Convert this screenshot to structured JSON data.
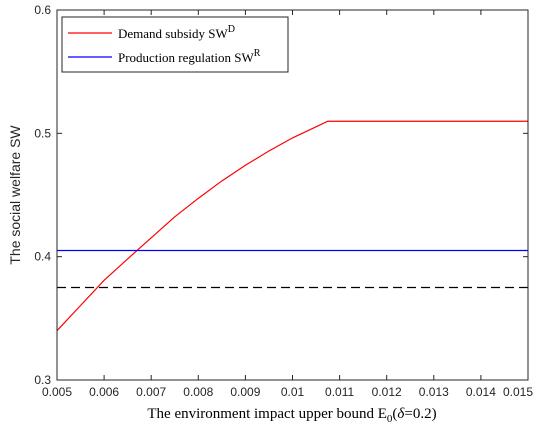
{
  "chart_data": {
    "type": "line",
    "xlabel": {
      "main": "The environment impact upper bound E",
      "sub": "0",
      "paren_open": "(",
      "delta": "δ",
      "paren_rest": "=0.2)"
    },
    "ylabel": "The social welfare SW",
    "xlim": [
      0.005,
      0.015
    ],
    "ylim": [
      0.3,
      0.6
    ],
    "xticks": [
      "0.005",
      "0.006",
      "0.007",
      "0.008",
      "0.009",
      "0.01",
      "0.011",
      "0.012",
      "0.013",
      "0.014",
      "0.015"
    ],
    "yticks": [
      "0.3",
      "0.4",
      "0.5",
      "0.6"
    ],
    "grid": false,
    "legend_position": "top-left",
    "series": [
      {
        "name_main": "Demand subsidy SW",
        "name_sup": "D",
        "color": "#ff0000",
        "style": "solid",
        "x": [
          0.005,
          0.0055,
          0.006,
          0.0065,
          0.007,
          0.0075,
          0.008,
          0.0085,
          0.009,
          0.0095,
          0.01,
          0.0105,
          0.01075,
          0.011,
          0.012,
          0.013,
          0.014,
          0.015
        ],
        "y": [
          0.34,
          0.3604,
          0.3808,
          0.3982,
          0.4153,
          0.4323,
          0.4473,
          0.4614,
          0.4741,
          0.4857,
          0.4963,
          0.5053,
          0.5098,
          0.5098,
          0.5098,
          0.5098,
          0.5098,
          0.5098
        ]
      },
      {
        "name_main": "Production regulation SW",
        "name_sup": "R",
        "color": "#0000ff",
        "style": "solid",
        "x": [
          0.005,
          0.015
        ],
        "y": [
          0.405,
          0.405
        ]
      },
      {
        "color": "#000000",
        "style": "dashed",
        "x": [
          0.005,
          0.015
        ],
        "y": [
          0.375,
          0.375
        ]
      }
    ]
  }
}
